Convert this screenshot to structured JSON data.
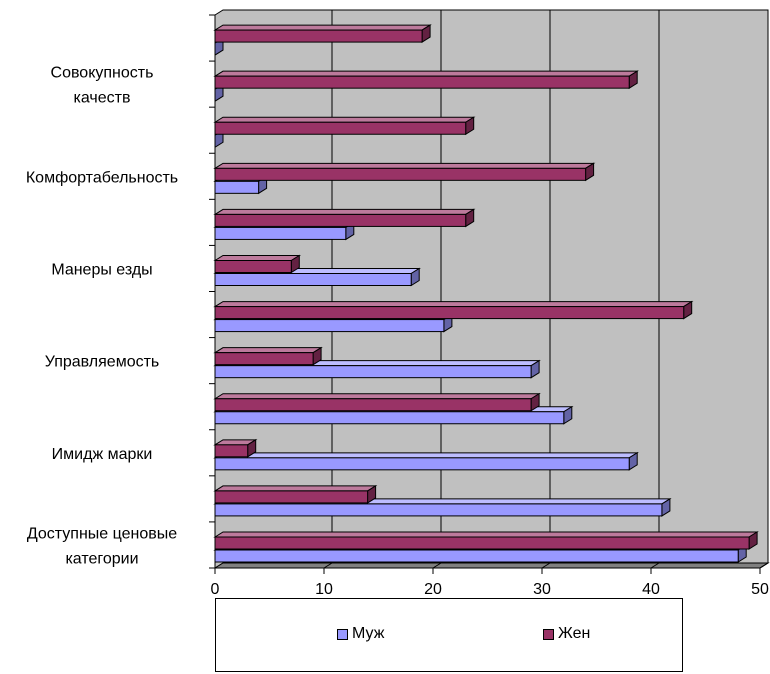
{
  "chart_data": {
    "type": "bar",
    "orientation": "horizontal",
    "categories": [
      "Доступные ценовые категории",
      "",
      "Имидж марки",
      "",
      "Управляемость",
      "",
      "Манеры езды",
      "",
      "Комфортабельность",
      "",
      "Совокупность качеств",
      ""
    ],
    "series": [
      {
        "name": "Муж",
        "color": "#9999ff",
        "values": [
          48,
          41,
          38,
          32,
          29,
          21,
          18,
          12,
          4,
          0,
          0,
          0
        ]
      },
      {
        "name": "Жен",
        "color": "#993366",
        "values": [
          49,
          14,
          3,
          29,
          9,
          43,
          7,
          23,
          34,
          23,
          38,
          19
        ]
      }
    ],
    "xlim": [
      0,
      50
    ],
    "xticks": [
      0,
      10,
      20,
      30,
      40,
      50
    ],
    "grid": true,
    "background": "#c0c0c0",
    "legend_position": "bottom"
  }
}
